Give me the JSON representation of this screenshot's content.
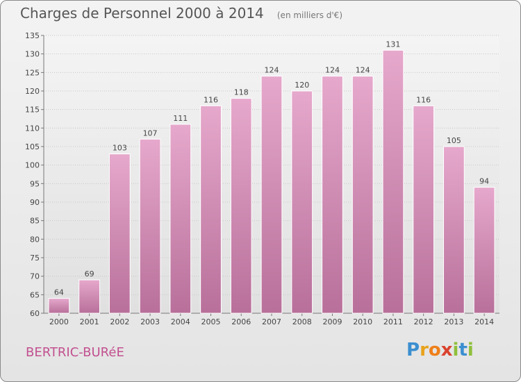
{
  "header": {
    "title": "Charges de Personnel 2000 à 2014",
    "subtitle": "(en milliers d'€)"
  },
  "footer": {
    "commune": "BERTRIC-BURéE",
    "logo_text": "Proxiti"
  },
  "colors": {
    "bar_top": "#e6a8cc",
    "bar_bottom": "#b8709a",
    "commune_text": "#c2508f",
    "logo_letters": [
      "#3b8fd0",
      "#e8a21b",
      "#ef7f1a",
      "#d9432e",
      "#8fbf3b",
      "#3b8fd0",
      "#8fbf3b"
    ]
  },
  "chart_data": {
    "type": "bar",
    "categories": [
      "2000",
      "2001",
      "2002",
      "2003",
      "2004",
      "2005",
      "2006",
      "2007",
      "2008",
      "2009",
      "2010",
      "2011",
      "2012",
      "2013",
      "2014"
    ],
    "values": [
      64,
      69,
      103,
      107,
      111,
      116,
      118,
      124,
      120,
      124,
      124,
      131,
      116,
      105,
      94
    ],
    "title": "Charges de Personnel 2000 à 2014",
    "ylim": [
      60,
      135
    ],
    "yticks": [
      60,
      65,
      70,
      75,
      80,
      85,
      90,
      95,
      100,
      105,
      110,
      115,
      120,
      125,
      130,
      135
    ],
    "grid": true,
    "data_labels": true
  }
}
